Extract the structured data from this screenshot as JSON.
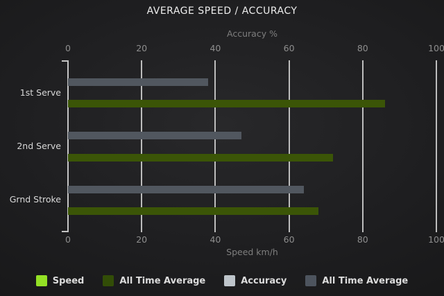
{
  "chart_data": {
    "type": "bar",
    "orientation": "horizontal",
    "title": "AVERAGE SPEED / ACCURACY",
    "categories": [
      "1st Serve",
      "2nd Serve",
      "Grnd Stroke"
    ],
    "top_axis": {
      "label": "Accuracy %",
      "range": [
        0,
        100
      ],
      "ticks": [
        0,
        20,
        40,
        60,
        80,
        100
      ]
    },
    "bottom_axis": {
      "label": "Speed km/h",
      "range": [
        0,
        100
      ],
      "ticks": [
        0,
        20,
        40,
        60,
        80,
        100
      ]
    },
    "series": [
      {
        "name": "Speed",
        "axis": "bottom",
        "color": "#94e125",
        "values": [
          null,
          null,
          null
        ]
      },
      {
        "name": "All Time Average",
        "axis": "bottom",
        "color": "#3b5507",
        "values": [
          86,
          72,
          68
        ],
        "row": 1
      },
      {
        "name": "Accuracy",
        "axis": "top",
        "color": "#bec5cb",
        "values": [
          null,
          null,
          null
        ]
      },
      {
        "name": "All Time Average",
        "axis": "top",
        "color": "#51575f",
        "values": [
          38,
          47,
          64
        ],
        "row": 0
      }
    ],
    "legend": [
      {
        "label": "Speed",
        "color": "#94e125"
      },
      {
        "label": "All Time Average",
        "color": "#324d07"
      },
      {
        "label": "Accuracy",
        "color": "#bec5cb"
      },
      {
        "label": "All Time Average",
        "color": "#4d545e"
      }
    ],
    "grid": true,
    "gridline_color": "#bdbdbd",
    "legend_position": "bottom",
    "background": "#1e1e20"
  }
}
